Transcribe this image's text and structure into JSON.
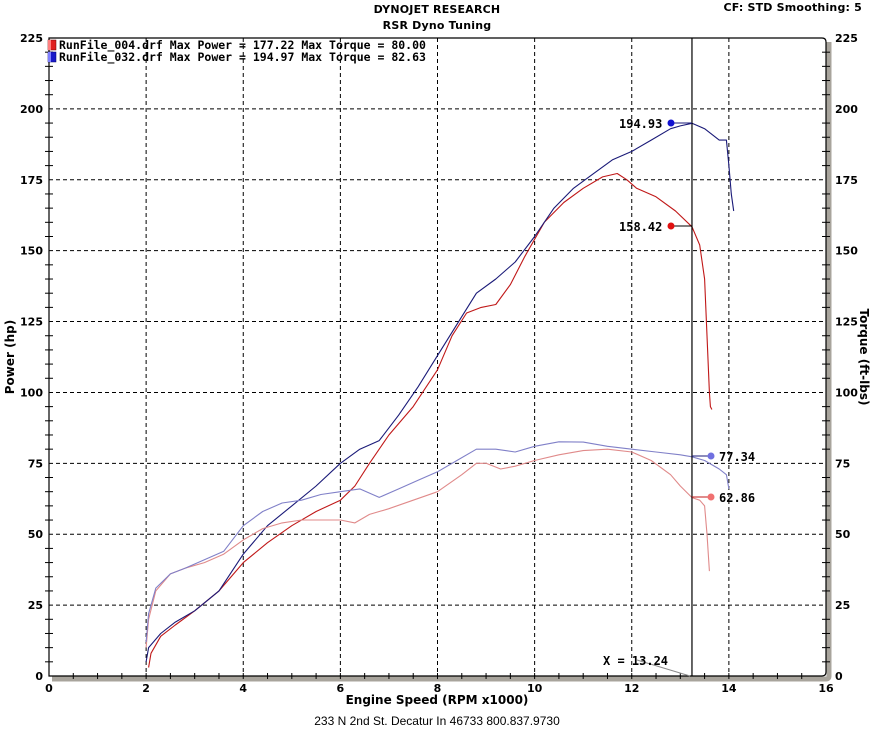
{
  "header": {
    "company": "DYNOJET RESEARCH",
    "shop": "RSR Dyno Tuning",
    "settings": "CF: STD  Smoothing: 5"
  },
  "legend": [
    {
      "swatch_color": "#e02020",
      "text": "RunFile_004.drf Max Power = 177.22    Max Torque = 80.00"
    },
    {
      "swatch_color": "#1a1ac8",
      "text": "RunFile_032.drf Max Power = 194.97    Max Torque = 82.63"
    }
  ],
  "axes": {
    "xlabel": "Engine Speed (RPM x1000)",
    "ylabel_left": "Power (hp)",
    "ylabel_right": "Torque (ft-lbs)",
    "x_ticks": [
      "0",
      "2",
      "4",
      "6",
      "8",
      "10",
      "12",
      "14",
      "16"
    ],
    "y_ticks": [
      "0",
      "25",
      "50",
      "75",
      "100",
      "125",
      "150",
      "175",
      "200",
      "225"
    ]
  },
  "cursor": {
    "label": "X = 13.24",
    "x": 13.24
  },
  "annotations": {
    "run032_power": "194.93",
    "run004_power": "158.42",
    "run032_torque": "77.34",
    "run004_torque": "62.86"
  },
  "footer": "233 N 2nd St. Decatur In 46733 800.837.9730",
  "chart_data": {
    "type": "line",
    "title": "DYNOJET RESEARCH - RSR Dyno Tuning",
    "subtitle": "CF: STD  Smoothing: 5",
    "xlabel": "Engine Speed (RPM x1000)",
    "ylabel": "Power (hp)",
    "ylabel_right": "Torque (ft-lbs)",
    "xlim": [
      0,
      16
    ],
    "ylim": [
      0,
      225
    ],
    "ylim_right": [
      0,
      225
    ],
    "grid": true,
    "legend_position": "top-left",
    "cursor_x": 13.24,
    "series": [
      {
        "name": "RunFile_004.drf Power (hp)",
        "color": "#c01818",
        "max": 177.22,
        "cursor_value": 158.42,
        "x": [
          2.05,
          2.1,
          2.3,
          2.6,
          3.0,
          3.5,
          4.0,
          4.5,
          5.0,
          5.5,
          6.0,
          6.3,
          6.6,
          7.0,
          7.5,
          8.0,
          8.3,
          8.6,
          8.9,
          9.2,
          9.5,
          9.8,
          10.2,
          10.6,
          11.0,
          11.4,
          11.7,
          11.9,
          12.1,
          12.5,
          12.9,
          13.24,
          13.4,
          13.5,
          13.55,
          13.6,
          13.62,
          13.65
        ],
        "y": [
          3,
          8,
          14,
          18,
          23,
          30,
          40,
          47,
          53,
          58,
          62,
          67,
          75,
          85,
          95,
          108,
          120,
          128,
          130,
          131,
          138,
          148,
          160,
          167,
          172,
          176,
          177.2,
          175,
          172,
          169,
          164,
          158.4,
          152,
          140,
          120,
          100,
          95,
          94
        ]
      },
      {
        "name": "RunFile_032.drf Power (hp)",
        "color": "#1a1a78",
        "max": 194.97,
        "cursor_value": 194.93,
        "x": [
          2.0,
          2.05,
          2.3,
          2.6,
          3.0,
          3.5,
          4.0,
          4.5,
          5.0,
          5.5,
          6.0,
          6.4,
          6.8,
          7.2,
          7.6,
          8.0,
          8.4,
          8.8,
          9.2,
          9.6,
          10.0,
          10.4,
          10.8,
          11.2,
          11.6,
          12.0,
          12.4,
          12.8,
          13.0,
          13.24,
          13.5,
          13.8,
          13.95,
          14.0,
          14.05,
          14.1
        ],
        "y": [
          5,
          10,
          15,
          19,
          23,
          30,
          43,
          53,
          60,
          67,
          75,
          80,
          83,
          92,
          102,
          113,
          124,
          135,
          140,
          146,
          155,
          165,
          172,
          177,
          182,
          185,
          189,
          193,
          194,
          194.93,
          193,
          189,
          189,
          180,
          170,
          164
        ]
      },
      {
        "name": "RunFile_004.drf Torque (ft-lbs)",
        "color": "#e08a8a",
        "max": 80.0,
        "cursor_value": 62.86,
        "x": [
          2.0,
          2.05,
          2.2,
          2.5,
          2.8,
          3.2,
          3.6,
          4.0,
          4.4,
          4.8,
          5.2,
          5.6,
          6.0,
          6.3,
          6.6,
          7.0,
          7.5,
          8.0,
          8.5,
          8.8,
          9.0,
          9.3,
          9.6,
          10.0,
          10.5,
          11.0,
          11.5,
          12.0,
          12.4,
          12.8,
          13.0,
          13.24,
          13.4,
          13.5,
          13.55,
          13.6
        ],
        "y": [
          10,
          20,
          30,
          36,
          38,
          40,
          43,
          48,
          52,
          54,
          55,
          55,
          55,
          54,
          57,
          59,
          62,
          65,
          71,
          75,
          75,
          73,
          74,
          76,
          78,
          79.5,
          80,
          79,
          76,
          71,
          67,
          62.9,
          62,
          60,
          50,
          37
        ]
      },
      {
        "name": "RunFile_032.drf Torque (ft-lbs)",
        "color": "#8080c8",
        "max": 82.63,
        "cursor_value": 77.34,
        "x": [
          2.0,
          2.05,
          2.2,
          2.5,
          2.8,
          3.2,
          3.6,
          4.0,
          4.4,
          4.8,
          5.2,
          5.6,
          6.0,
          6.4,
          6.8,
          7.2,
          7.6,
          8.0,
          8.4,
          8.8,
          9.2,
          9.6,
          10.0,
          10.5,
          11.0,
          11.5,
          12.0,
          12.5,
          13.0,
          13.24,
          13.5,
          13.8,
          13.95,
          14.0
        ],
        "y": [
          12,
          22,
          31,
          36,
          38,
          41,
          44,
          53,
          58,
          61,
          62,
          64,
          65,
          66,
          63,
          66,
          69,
          72,
          76,
          80,
          80,
          79,
          81,
          82.6,
          82.5,
          81,
          80,
          79,
          78,
          77.3,
          76,
          73,
          71,
          66
        ]
      }
    ]
  }
}
